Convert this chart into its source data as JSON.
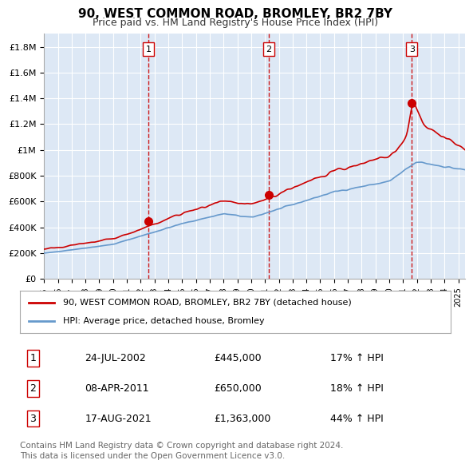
{
  "title": "90, WEST COMMON ROAD, BROMLEY, BR2 7BY",
  "subtitle": "Price paid vs. HM Land Registry's House Price Index (HPI)",
  "title_fontsize": 12,
  "subtitle_fontsize": 10,
  "bg_color": "#dde8f5",
  "plot_bg_color": "#dde8f5",
  "grid_color": "#ffffff",
  "red_line_color": "#cc0000",
  "blue_line_color": "#6699cc",
  "sale_marker_color": "#cc0000",
  "dashed_line_color": "#cc0000",
  "ylim": [
    0,
    1900000
  ],
  "yticks": [
    0,
    200000,
    400000,
    600000,
    800000,
    1000000,
    1200000,
    1400000,
    1600000,
    1800000
  ],
  "ytick_labels": [
    "£0",
    "£200K",
    "£400K",
    "£600K",
    "£800K",
    "£1M",
    "£1.2M",
    "£1.4M",
    "£1.6M",
    "£1.8M"
  ],
  "xlabel_years": [
    1995,
    1996,
    1997,
    1998,
    1999,
    2000,
    2001,
    2002,
    2003,
    2004,
    2005,
    2006,
    2007,
    2008,
    2009,
    2010,
    2011,
    2012,
    2013,
    2014,
    2015,
    2016,
    2017,
    2018,
    2019,
    2020,
    2021,
    2022,
    2023,
    2024,
    2025
  ],
  "sale_dates": [
    2002.56,
    2011.27,
    2021.63
  ],
  "sale_prices": [
    445000,
    650000,
    1363000
  ],
  "sale_labels": [
    "1",
    "2",
    "3"
  ],
  "legend_entries": [
    "90, WEST COMMON ROAD, BROMLEY, BR2 7BY (detached house)",
    "HPI: Average price, detached house, Bromley"
  ],
  "table_rows": [
    {
      "label": "1",
      "date": "24-JUL-2002",
      "price": "£445,000",
      "change": "17% ↑ HPI"
    },
    {
      "label": "2",
      "date": "08-APR-2011",
      "price": "£650,000",
      "change": "18% ↑ HPI"
    },
    {
      "label": "3",
      "date": "17-AUG-2021",
      "price": "£1,363,000",
      "change": "44% ↑ HPI"
    }
  ],
  "footer": "Contains HM Land Registry data © Crown copyright and database right 2024.\nThis data is licensed under the Open Government Licence v3.0.",
  "footer_fontsize": 7.5
}
